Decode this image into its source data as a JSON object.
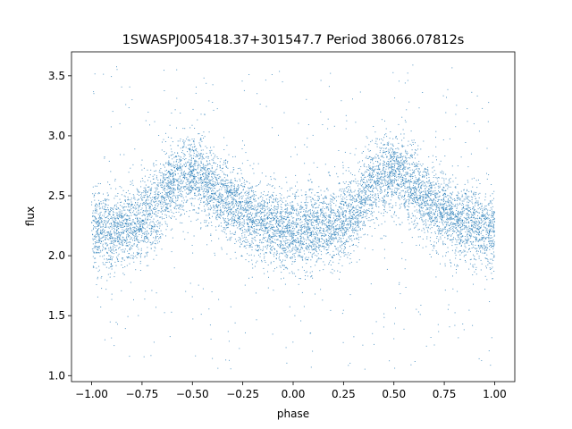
{
  "chart_data": {
    "type": "scatter",
    "title": "1SWASPJ005418.37+301547.7 Period 38066.07812s",
    "xlabel": "phase",
    "ylabel": "flux",
    "xlim": [
      -1.1,
      1.1
    ],
    "ylim": [
      0.95,
      3.7
    ],
    "xticks": [
      -1.0,
      -0.75,
      -0.5,
      -0.25,
      0.0,
      0.25,
      0.5,
      0.75,
      1.0
    ],
    "xtick_labels": [
      "−1.00",
      "−0.75",
      "−0.50",
      "−0.25",
      "0.00",
      "0.25",
      "0.50",
      "0.75",
      "1.00"
    ],
    "yticks": [
      1.0,
      1.5,
      2.0,
      2.5,
      3.0,
      3.5
    ],
    "ytick_labels": [
      "1.0",
      "1.5",
      "2.0",
      "2.5",
      "3.0",
      "3.5"
    ],
    "grid": false,
    "marker_color": "#1f77b4",
    "series": [
      {
        "x": [
          -1.0,
          -0.9,
          -0.8,
          -0.7,
          -0.65,
          -0.6,
          -0.55,
          -0.5,
          -0.45,
          -0.4,
          -0.3,
          -0.2,
          -0.1,
          0.0,
          0.1,
          0.2,
          0.3,
          0.35,
          0.4,
          0.45,
          0.5,
          0.55,
          0.6,
          0.7,
          0.8,
          0.9,
          1.0
        ],
        "y": [
          2.2,
          2.22,
          2.25,
          2.35,
          2.5,
          2.62,
          2.68,
          2.7,
          2.65,
          2.55,
          2.42,
          2.32,
          2.25,
          2.2,
          2.22,
          2.25,
          2.35,
          2.5,
          2.62,
          2.68,
          2.7,
          2.65,
          2.55,
          2.42,
          2.32,
          2.25,
          2.2
        ],
        "scatter_sd": 0.16,
        "x_range": [
          -1.0,
          1.0
        ],
        "y_range": [
          1.05,
          3.6
        ]
      }
    ]
  }
}
